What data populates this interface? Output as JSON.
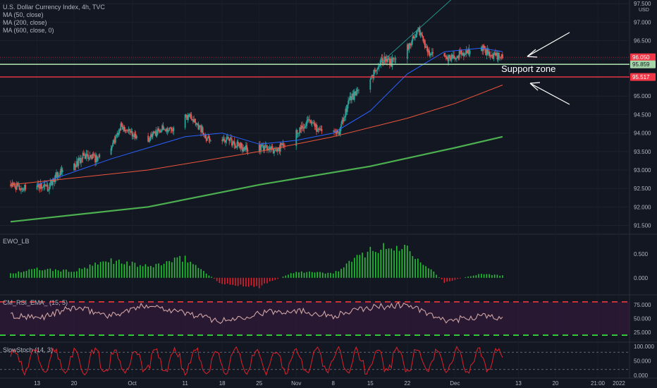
{
  "header": {
    "symbol_line": "U.S. Dollar Currency Index, 4h, TVC",
    "studies": [
      "MA (50, close)",
      "MA (200, close)",
      "MA (600, close, 0)"
    ]
  },
  "price_axis": {
    "currency": "USD",
    "ticks": [
      "97.500",
      "97.000",
      "96.500",
      "96.000",
      "95.500",
      "95.000",
      "94.500",
      "94.000",
      "93.500",
      "93.000",
      "92.500",
      "92.000",
      "91.500"
    ],
    "badges": [
      {
        "label": "96.050",
        "color": "#f23645"
      },
      {
        "label": "95.859",
        "color": "#a5d6a7"
      },
      {
        "label": "95.517",
        "color": "#f23645"
      }
    ]
  },
  "annotation": {
    "text": "Support zone"
  },
  "time_axis": {
    "labels": [
      "13",
      "20",
      "Oct",
      "11",
      "18",
      "25",
      "Nov",
      "8",
      "15",
      "22",
      "Dec",
      "13",
      "20",
      "21:00",
      "2022"
    ]
  },
  "panes": {
    "ewo": {
      "title": "EWO_LB",
      "ticks": [
        "0.500",
        "0.000"
      ]
    },
    "rsi": {
      "title": "CM_RSI_EMA_ (15, 5)",
      "ticks": [
        "75.000",
        "50.000",
        "25.000"
      ]
    },
    "stoch": {
      "title": "SlowStoch (14, 3)",
      "ticks": [
        "100.000",
        "50.000",
        "0.000"
      ]
    }
  },
  "colors": {
    "background": "#131722",
    "up": "#26a69a",
    "down": "#ef5350",
    "ma50": "#2962ff",
    "ma200": "#f0553a",
    "ma600": "#4caf50",
    "support_top": "#a5d6a7",
    "support_bottom": "#f23645"
  },
  "chart_data": [
    {
      "type": "candlestick",
      "title": "U.S. Dollar Currency Index, 4h, TVC",
      "ylim": [
        91.3,
        97.6
      ],
      "support_zone": [
        95.517,
        95.859
      ],
      "last_price": 96.05,
      "close_path": [
        {
          "x": "2021-09-08",
          "y": 92.6
        },
        {
          "x": "2021-09-10",
          "y": 92.5
        },
        {
          "x": "2021-09-13",
          "y": 92.6
        },
        {
          "x": "2021-09-15",
          "y": 92.5
        },
        {
          "x": "2021-09-17",
          "y": 92.9
        },
        {
          "x": "2021-09-20",
          "y": 93.1
        },
        {
          "x": "2021-09-22",
          "y": 93.4
        },
        {
          "x": "2021-09-24",
          "y": 93.3
        },
        {
          "x": "2021-09-27",
          "y": 93.6
        },
        {
          "x": "2021-09-29",
          "y": 94.2
        },
        {
          "x": "2021-10-01",
          "y": 94.0
        },
        {
          "x": "2021-10-04",
          "y": 93.8
        },
        {
          "x": "2021-10-06",
          "y": 94.1
        },
        {
          "x": "2021-10-08",
          "y": 94.1
        },
        {
          "x": "2021-10-12",
          "y": 94.5
        },
        {
          "x": "2021-10-15",
          "y": 93.9
        },
        {
          "x": "2021-10-19",
          "y": 93.8
        },
        {
          "x": "2021-10-22",
          "y": 93.6
        },
        {
          "x": "2021-10-26",
          "y": 93.6
        },
        {
          "x": "2021-10-28",
          "y": 93.5
        },
        {
          "x": "2021-11-01",
          "y": 94.0
        },
        {
          "x": "2021-11-03",
          "y": 94.3
        },
        {
          "x": "2021-11-05",
          "y": 94.1
        },
        {
          "x": "2021-11-09",
          "y": 94.0
        },
        {
          "x": "2021-11-11",
          "y": 94.9
        },
        {
          "x": "2021-11-15",
          "y": 95.4
        },
        {
          "x": "2021-11-17",
          "y": 96.0
        },
        {
          "x": "2021-11-19",
          "y": 95.9
        },
        {
          "x": "2021-11-22",
          "y": 96.3
        },
        {
          "x": "2021-11-24",
          "y": 96.8
        },
        {
          "x": "2021-11-26",
          "y": 96.2
        },
        {
          "x": "2021-11-29",
          "y": 96.0
        },
        {
          "x": "2021-12-01",
          "y": 96.1
        },
        {
          "x": "2021-12-03",
          "y": 96.2
        },
        {
          "x": "2021-12-06",
          "y": 96.3
        },
        {
          "x": "2021-12-08",
          "y": 96.1
        },
        {
          "x": "2021-12-10",
          "y": 96.05
        }
      ],
      "series": [
        {
          "name": "MA (50, close)",
          "values": [
            {
              "x": "2021-09-13",
              "y": 92.6
            },
            {
              "x": "2021-09-27",
              "y": 93.3
            },
            {
              "x": "2021-10-11",
              "y": 93.9
            },
            {
              "x": "2021-10-18",
              "y": 94.0
            },
            {
              "x": "2021-10-25",
              "y": 93.7
            },
            {
              "x": "2021-11-01",
              "y": 93.8
            },
            {
              "x": "2021-11-08",
              "y": 94.0
            },
            {
              "x": "2021-11-15",
              "y": 94.6
            },
            {
              "x": "2021-11-22",
              "y": 95.6
            },
            {
              "x": "2021-11-29",
              "y": 96.2
            },
            {
              "x": "2021-12-06",
              "y": 96.3
            },
            {
              "x": "2021-12-10",
              "y": 96.2
            }
          ]
        },
        {
          "name": "MA (200, close)",
          "values": [
            {
              "x": "2021-09-08",
              "y": 92.6
            },
            {
              "x": "2021-10-04",
              "y": 93.0
            },
            {
              "x": "2021-10-25",
              "y": 93.5
            },
            {
              "x": "2021-11-08",
              "y": 93.9
            },
            {
              "x": "2021-11-22",
              "y": 94.4
            },
            {
              "x": "2021-12-01",
              "y": 94.8
            },
            {
              "x": "2021-12-10",
              "y": 95.3
            }
          ]
        },
        {
          "name": "MA (600, close, 0)",
          "values": [
            {
              "x": "2021-09-08",
              "y": 91.6
            },
            {
              "x": "2021-10-04",
              "y": 92.0
            },
            {
              "x": "2021-10-25",
              "y": 92.6
            },
            {
              "x": "2021-11-15",
              "y": 93.1
            },
            {
              "x": "2021-12-01",
              "y": 93.6
            },
            {
              "x": "2021-12-10",
              "y": 93.9
            }
          ]
        }
      ]
    },
    {
      "type": "bar",
      "title": "EWO_LB",
      "ylim": [
        -0.3,
        0.8
      ],
      "values": [
        {
          "x": "2021-09-08",
          "y": 0.1
        },
        {
          "x": "2021-09-13",
          "y": 0.2
        },
        {
          "x": "2021-09-20",
          "y": 0.15
        },
        {
          "x": "2021-09-27",
          "y": 0.4
        },
        {
          "x": "2021-10-04",
          "y": 0.25
        },
        {
          "x": "2021-10-11",
          "y": 0.45
        },
        {
          "x": "2021-10-18",
          "y": -0.15
        },
        {
          "x": "2021-10-25",
          "y": -0.2
        },
        {
          "x": "2021-11-01",
          "y": 0.15
        },
        {
          "x": "2021-11-08",
          "y": 0.1
        },
        {
          "x": "2021-11-15",
          "y": 0.65
        },
        {
          "x": "2021-11-22",
          "y": 0.7
        },
        {
          "x": "2021-11-29",
          "y": -0.1
        },
        {
          "x": "2021-12-06",
          "y": 0.1
        },
        {
          "x": "2021-12-10",
          "y": 0.05
        }
      ]
    },
    {
      "type": "line",
      "title": "CM_RSI_EMA_ (15, 5)",
      "ylim": [
        10,
        90
      ],
      "levels": [
        80,
        20
      ],
      "values": [
        {
          "x": "2021-09-08",
          "y": 55
        },
        {
          "x": "2021-09-13",
          "y": 50
        },
        {
          "x": "2021-09-20",
          "y": 70
        },
        {
          "x": "2021-09-27",
          "y": 55
        },
        {
          "x": "2021-10-04",
          "y": 75
        },
        {
          "x": "2021-10-11",
          "y": 60
        },
        {
          "x": "2021-10-18",
          "y": 45
        },
        {
          "x": "2021-10-25",
          "y": 60
        },
        {
          "x": "2021-11-01",
          "y": 65
        },
        {
          "x": "2021-11-08",
          "y": 55
        },
        {
          "x": "2021-11-15",
          "y": 70
        },
        {
          "x": "2021-11-22",
          "y": 75
        },
        {
          "x": "2021-11-29",
          "y": 45
        },
        {
          "x": "2021-12-06",
          "y": 55
        },
        {
          "x": "2021-12-10",
          "y": 50
        }
      ]
    },
    {
      "type": "line",
      "title": "SlowStoch (14, 3)",
      "ylim": [
        -5,
        110
      ],
      "levels": [
        80,
        20
      ],
      "values": [
        {
          "x": "2021-09-08",
          "y": 60
        },
        {
          "x": "2021-09-13",
          "y": 20
        },
        {
          "x": "2021-09-20",
          "y": 80
        },
        {
          "x": "2021-09-27",
          "y": 30
        },
        {
          "x": "2021-10-04",
          "y": 70
        },
        {
          "x": "2021-10-11",
          "y": 15
        },
        {
          "x": "2021-10-18",
          "y": 75
        },
        {
          "x": "2021-10-25",
          "y": 20
        },
        {
          "x": "2021-11-01",
          "y": 80
        },
        {
          "x": "2021-11-08",
          "y": 25
        },
        {
          "x": "2021-11-15",
          "y": 85
        },
        {
          "x": "2021-11-22",
          "y": 30
        },
        {
          "x": "2021-11-29",
          "y": 70
        },
        {
          "x": "2021-12-06",
          "y": 20
        },
        {
          "x": "2021-12-10",
          "y": 60
        }
      ]
    }
  ]
}
